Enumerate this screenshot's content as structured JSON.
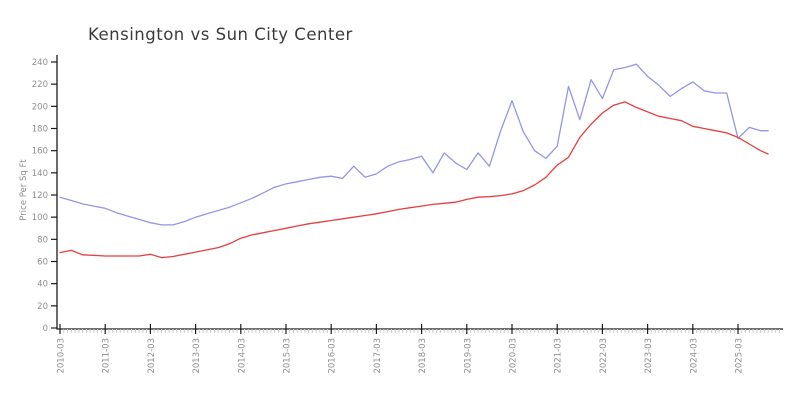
{
  "chart_data": {
    "type": "line",
    "title": "Kensington vs Sun City Center",
    "xlabel": "",
    "ylabel": "Price Per Sq Ft",
    "ylim": [
      0,
      240
    ],
    "y_ticks": [
      0,
      20,
      40,
      60,
      80,
      100,
      120,
      140,
      160,
      180,
      200,
      220,
      240
    ],
    "x_tick_labels": [
      "2010-03",
      "2011-03",
      "2012-03",
      "2013-03",
      "2014-03",
      "2015-03",
      "2016-03",
      "2017-03",
      "2018-03",
      "2019-03",
      "2020-03",
      "2021-03",
      "2022-03",
      "2023-03",
      "2024-03",
      "2025-03"
    ],
    "grid": false,
    "legend_position": "none",
    "x": [
      "2010-03",
      "2010-06",
      "2010-09",
      "2010-12",
      "2011-03",
      "2011-06",
      "2011-09",
      "2011-12",
      "2012-03",
      "2012-06",
      "2012-09",
      "2012-12",
      "2013-03",
      "2013-06",
      "2013-09",
      "2013-12",
      "2014-03",
      "2014-06",
      "2014-09",
      "2014-12",
      "2015-03",
      "2015-06",
      "2015-09",
      "2015-12",
      "2016-03",
      "2016-06",
      "2016-09",
      "2016-12",
      "2017-03",
      "2017-06",
      "2017-09",
      "2017-12",
      "2018-03",
      "2018-06",
      "2018-09",
      "2018-12",
      "2019-03",
      "2019-06",
      "2019-09",
      "2019-12",
      "2020-03",
      "2020-06",
      "2020-09",
      "2020-12",
      "2021-03",
      "2021-06",
      "2021-09",
      "2021-12",
      "2022-03",
      "2022-06",
      "2022-09",
      "2022-12",
      "2023-03",
      "2023-06",
      "2023-09",
      "2023-12",
      "2024-03",
      "2024-06",
      "2024-09",
      "2024-12",
      "2025-03",
      "2025-06",
      "2025-09",
      "2025-11"
    ],
    "series": [
      {
        "name": "Kensington",
        "color": "#9595e8",
        "values": [
          118,
          115,
          112,
          110,
          108,
          104,
          101,
          98,
          95,
          93,
          93,
          96,
          100,
          103,
          106,
          109,
          113,
          117,
          122,
          127,
          130,
          132,
          134,
          136,
          137,
          135,
          146,
          136,
          139,
          146,
          150,
          152,
          155,
          140,
          158,
          149,
          143,
          158,
          146,
          178,
          205,
          177,
          160,
          153,
          164,
          218,
          188,
          224,
          207,
          233,
          235,
          238,
          227,
          219,
          209,
          216,
          222,
          214,
          212,
          212,
          171,
          181,
          178,
          178
        ]
      },
      {
        "name": "Sun City Center",
        "color": "#e83e3e",
        "values": [
          68,
          70,
          66,
          65.5,
          65,
          65,
          65,
          65,
          66.5,
          63.5,
          64.5,
          66.5,
          68.5,
          70.5,
          72.5,
          76,
          81,
          84,
          86,
          88,
          90,
          92,
          94,
          95.5,
          97,
          98.5,
          100,
          101.5,
          103,
          105,
          107,
          108.5,
          110,
          111.5,
          112.5,
          113.5,
          116,
          118,
          118.5,
          119.5,
          121,
          124,
          129,
          136,
          147,
          154,
          172,
          184,
          194,
          201,
          204,
          199,
          195,
          191,
          189,
          187,
          182,
          180,
          178,
          176,
          172,
          166,
          160,
          157
        ]
      }
    ],
    "axis_color": "#1c1c1c",
    "minor_tick_color": "#cccccc"
  }
}
